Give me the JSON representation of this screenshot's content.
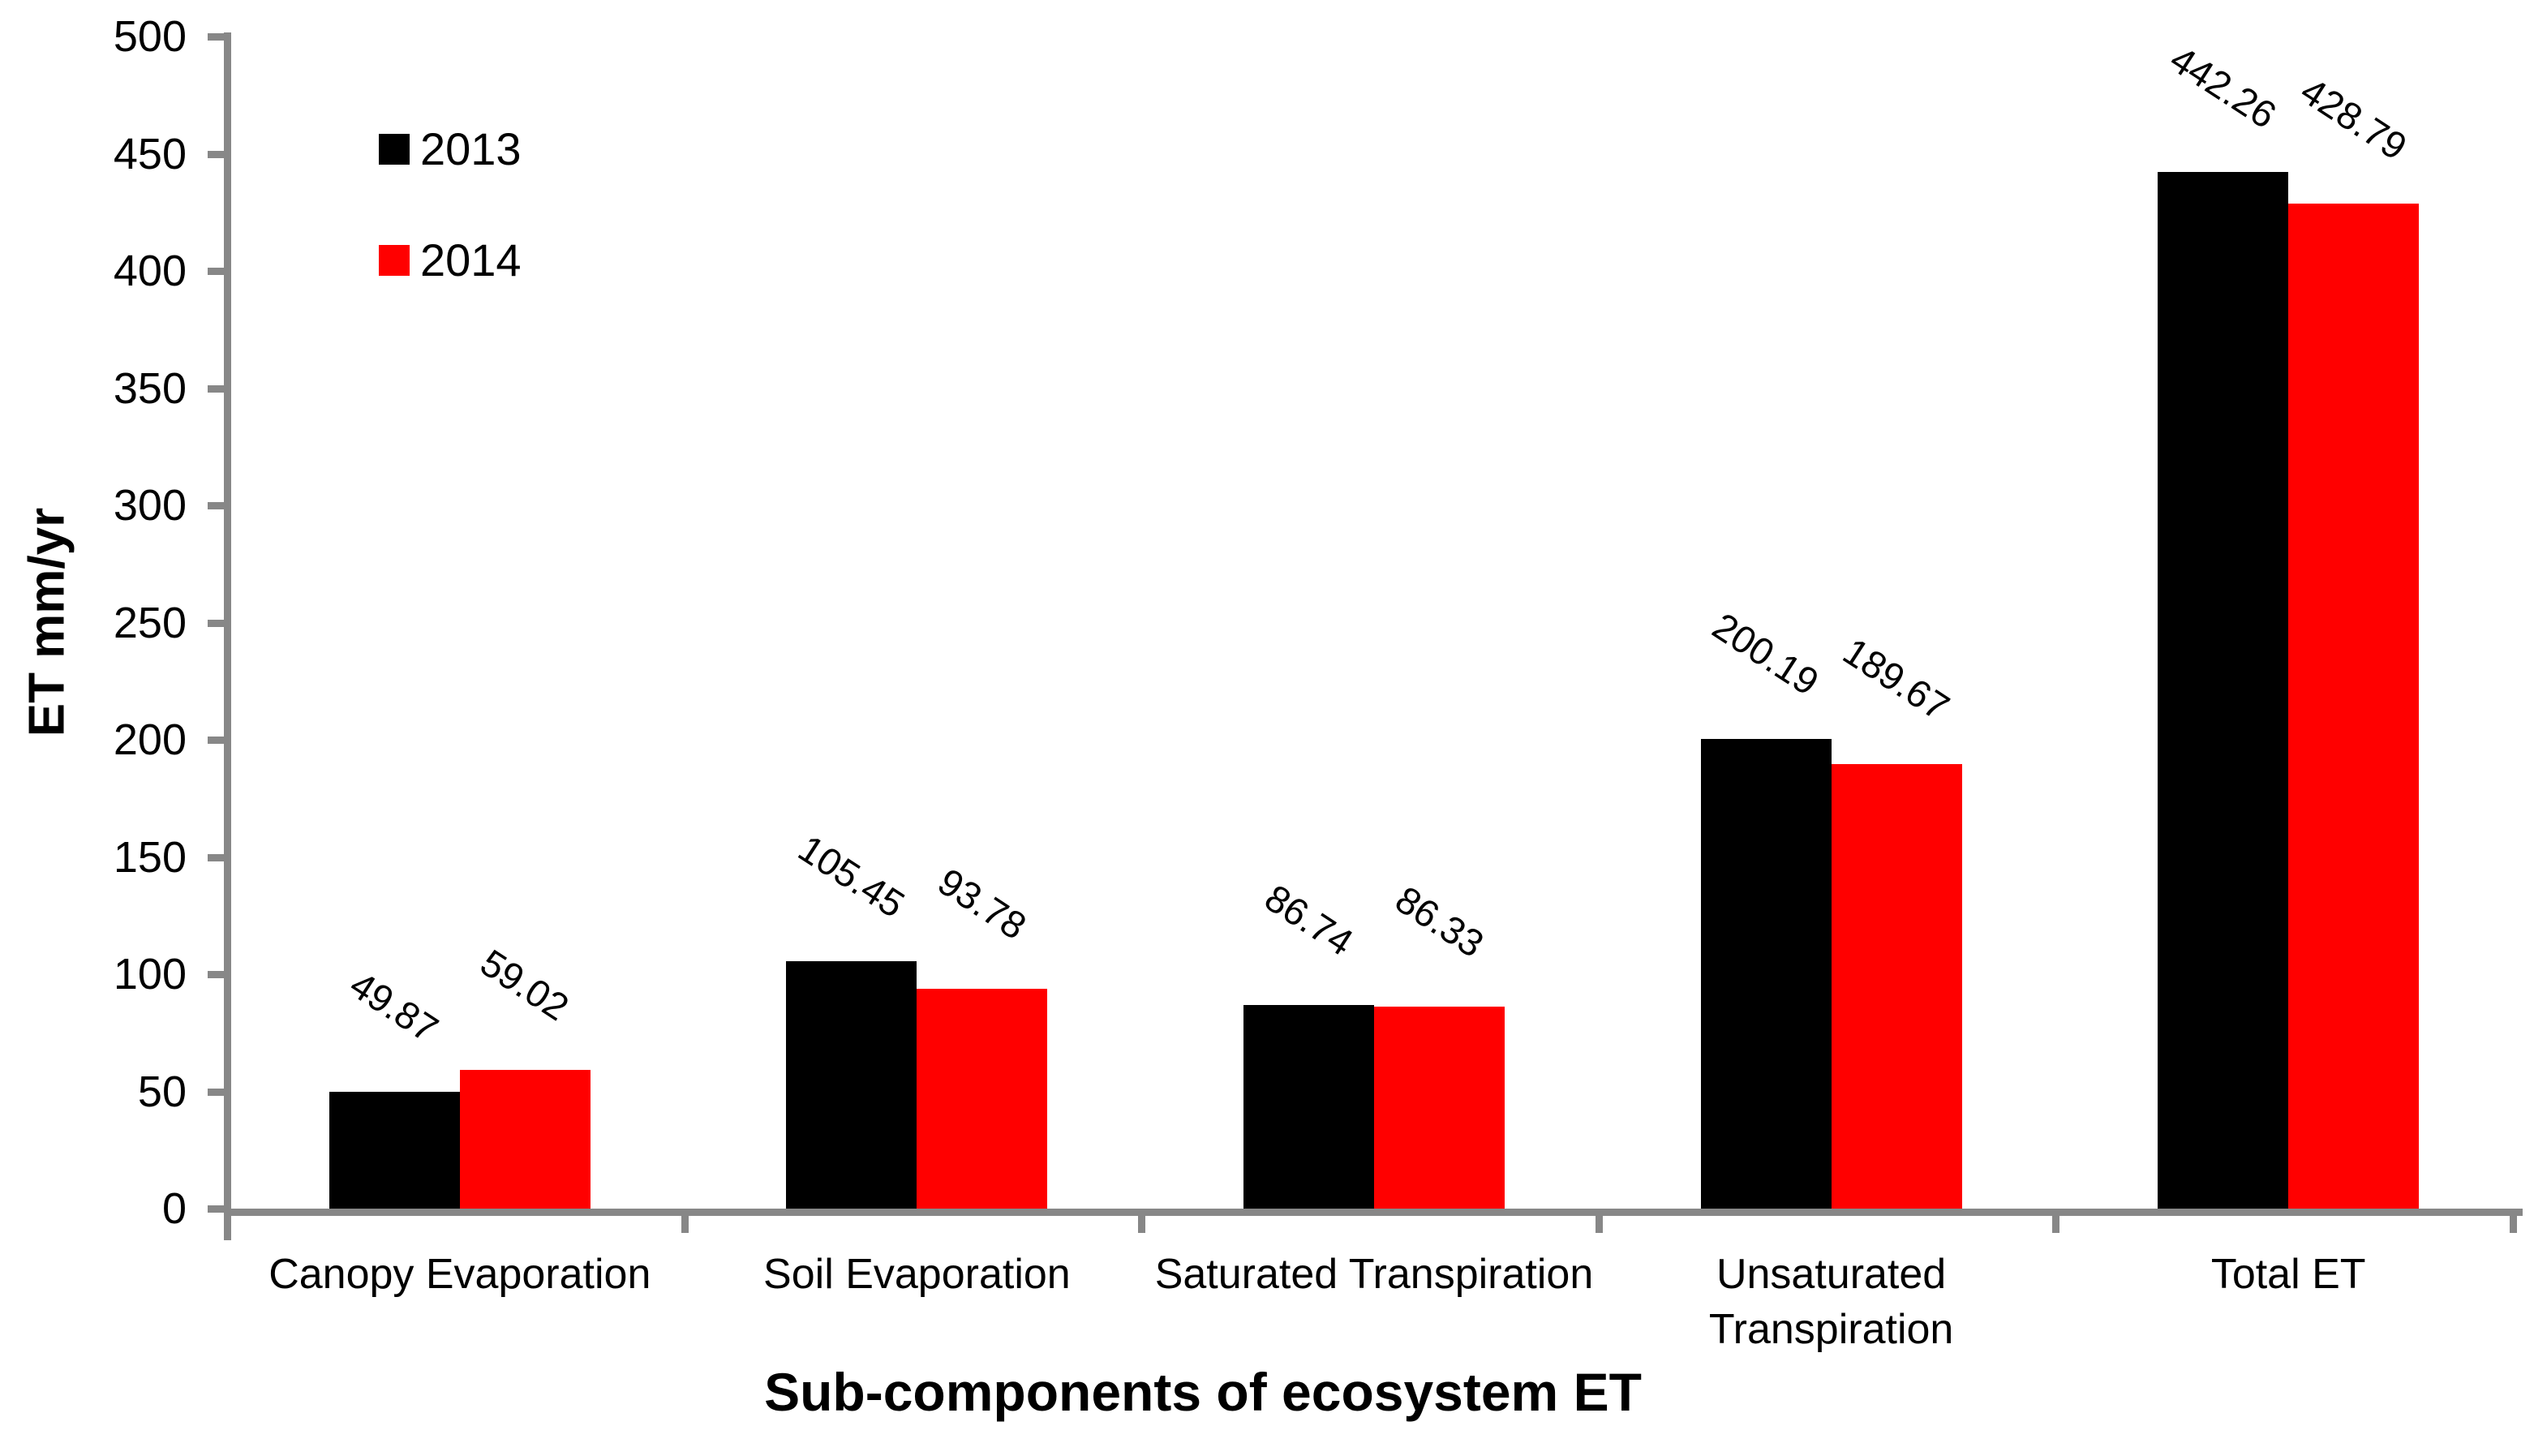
{
  "chart_data": {
    "type": "bar",
    "title": "",
    "xlabel": "Sub-components of ecosystem ET",
    "ylabel": "ET mm/yr",
    "categories": [
      "Canopy Evaporation",
      "Soil Evaporation",
      "Saturated Transpiration",
      "Unsaturated\nTranspiration",
      "Total ET"
    ],
    "series": [
      {
        "name": "2013",
        "color": "#000000",
        "values": [
          49.87,
          105.45,
          86.74,
          200.19,
          442.26
        ]
      },
      {
        "name": "2014",
        "color": "#ff0000",
        "values": [
          59.02,
          93.78,
          86.33,
          189.67,
          428.79
        ]
      }
    ],
    "data_labels": [
      "49.87",
      "59.02",
      "105.45",
      "93.78",
      "86.74",
      "86.33",
      "200.19",
      "189.67",
      "442.26",
      "428.79"
    ],
    "ylim": [
      0,
      500
    ],
    "ytick_step": 50,
    "yticks": [
      0,
      50,
      100,
      150,
      200,
      250,
      300,
      350,
      400,
      450,
      500
    ],
    "grid": false,
    "legend_position": "top-left-inside",
    "label_rotation_deg": 33,
    "axis_color": "#878787",
    "background": "#ffffff"
  }
}
